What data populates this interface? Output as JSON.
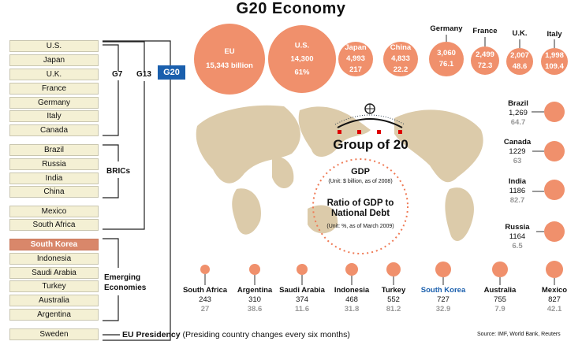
{
  "title": "G20 Economy",
  "groups": {
    "g7": "G7",
    "g13": "G13",
    "g20": "G20",
    "brics": "BRICs",
    "emerging": "Emerging Economies",
    "eu_presidency": "EU Presidency",
    "eu_presidency_note": "(Presiding country changes every six months)"
  },
  "members": [
    "U.S.",
    "Japan",
    "U.K.",
    "France",
    "Germany",
    "Italy",
    "Canada",
    "Brazil",
    "Russia",
    "India",
    "China",
    "Mexico",
    "South Africa",
    "South Korea",
    "Indonesia",
    "Saudi Arabia",
    "Turkey",
    "Australia",
    "Argentina",
    "Sweden"
  ],
  "legend": {
    "heading": "Group of 20",
    "gdp": "GDP",
    "gdp_unit": "(Unit: $ billion, as of 2008)",
    "ratio": "Ratio of GDP to National Debt",
    "ratio_unit": "(Unit:  %, as of March 2009)"
  },
  "chart_data": {
    "type": "bubble",
    "title": "G20 Economy",
    "series": [
      {
        "name": "EU",
        "gdp": "15,343 billion",
        "ratio": ""
      },
      {
        "name": "U.S.",
        "gdp": "14,300",
        "ratio": "61%"
      },
      {
        "name": "Japan",
        "gdp": "4,993",
        "ratio": "217"
      },
      {
        "name": "China",
        "gdp": "4,833",
        "ratio": "22.2"
      },
      {
        "name": "Germany",
        "gdp": "3,060",
        "ratio": "76.1"
      },
      {
        "name": "France",
        "gdp": "2,499",
        "ratio": "72.3"
      },
      {
        "name": "U.K.",
        "gdp": "2,007",
        "ratio": "48.6"
      },
      {
        "name": "Italy",
        "gdp": "1,998",
        "ratio": "109.4"
      },
      {
        "name": "Brazil",
        "gdp": "1,269",
        "ratio": "64.7"
      },
      {
        "name": "Canada",
        "gdp": "1229",
        "ratio": "63"
      },
      {
        "name": "India",
        "gdp": "1186",
        "ratio": "82.7"
      },
      {
        "name": "Russia",
        "gdp": "1164",
        "ratio": "6.5"
      },
      {
        "name": "South Africa",
        "gdp": "243",
        "ratio": "27"
      },
      {
        "name": "Argentina",
        "gdp": "310",
        "ratio": "38.6"
      },
      {
        "name": "Saudi Arabia",
        "gdp": "374",
        "ratio": "11.6"
      },
      {
        "name": "Indonesia",
        "gdp": "468",
        "ratio": "31.8"
      },
      {
        "name": "Turkey",
        "gdp": "552",
        "ratio": "81.2"
      },
      {
        "name": "South Korea",
        "gdp": "727",
        "ratio": "32.9"
      },
      {
        "name": "Australia",
        "gdp": "755",
        "ratio": "7.9"
      },
      {
        "name": "Mexico",
        "gdp": "827",
        "ratio": "42.1"
      }
    ]
  },
  "source": "Source: IMF, World Bank, Reuters",
  "colors": {
    "bubble": "#f0906c",
    "map": "#dccbaa",
    "g20": "#1a5fad",
    "highlight": "#d9876a"
  }
}
